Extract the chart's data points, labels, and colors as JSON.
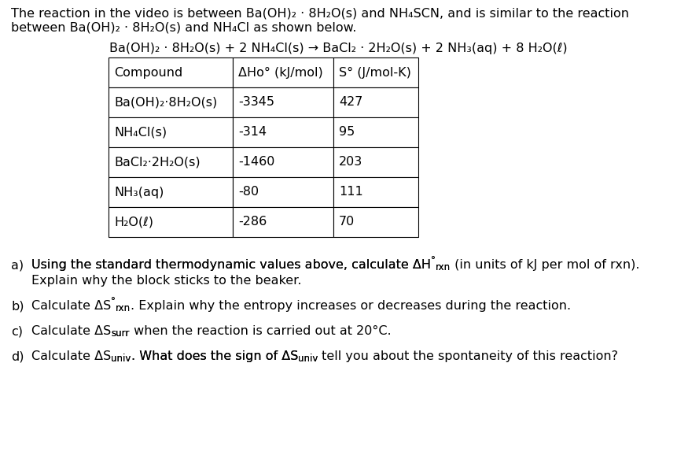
{
  "title_line1": "The reaction in the video is between Ba(OH)₂ · 8H₂O(s) and NH₄SCN, and is similar to the reaction",
  "title_line2": "between Ba(OH)₂ · 8H₂O(s) and NH₄Cl as shown below.",
  "equation": "Ba(OH)₂ · 8H₂O(s) + 2 NH₄Cl(s) → BaCl₂ · 2H₂O(s) + 2 NH₃(aq) + 8 H₂O(ℓ)",
  "table_headers": [
    "Compound",
    "ΔHᴏ° (kJ/mol)",
    "S° (J/mol-K)"
  ],
  "table_rows": [
    [
      "Ba(OH)₂·8H₂O(s)",
      "-3345",
      "427"
    ],
    [
      "NH₄Cl(s)",
      "-314",
      "95"
    ],
    [
      "BaCl₂·2H₂O(s)",
      "-1460",
      "203"
    ],
    [
      "NH₃(aq)",
      "-80",
      "111"
    ],
    [
      "H₂O(ℓ)",
      "-286",
      "70"
    ]
  ],
  "q_a_line1": "Using the standard thermodynamic values above, calculate ΔH°",
  "q_a_rxn": "rxn",
  "q_a_line1_end": " (in units of kJ per mol of rxn).",
  "q_a_line2": "Explain why the block sticks to the beaker.",
  "q_b_line1": "Calculate ΔS°",
  "q_b_rxn": "rxn",
  "q_b_line1_end": ". Explain why the entropy increases or decreases during the reaction.",
  "q_c_line1": "Calculate ΔS",
  "q_c_sub": "surr",
  "q_c_line1_end": " when the reaction is carried out at 20°C.",
  "q_d_line1": "Calculate ΔS",
  "q_d_sub": "univ",
  "q_d_line1_end": ". What does the sign of ΔS",
  "q_d_sub2": "univ",
  "q_d_line1_end2": " tell you about the spontaneity of this reaction?",
  "bg_color": "#ffffff",
  "text_color": "#000000"
}
